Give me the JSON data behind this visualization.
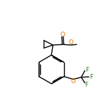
{
  "background_color": "#ffffff",
  "bond_color": "#000000",
  "atom_colors": {
    "O": "#e07000",
    "F": "#208020",
    "C": "#000000"
  },
  "figsize": [
    1.52,
    1.52
  ],
  "dpi": 100,
  "xlim": [
    0.0,
    10.0
  ],
  "ylim": [
    0.5,
    10.5
  ]
}
